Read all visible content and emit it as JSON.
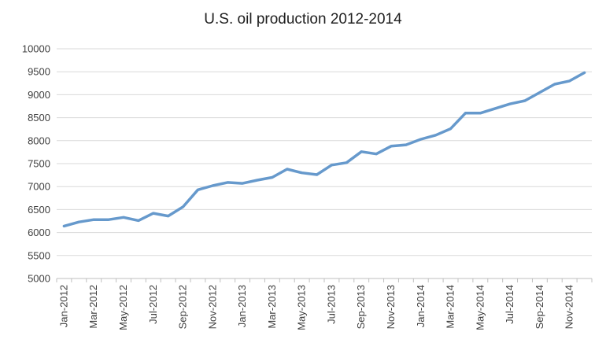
{
  "chart_data": {
    "type": "line",
    "title": "U.S. oil production 2012-2014",
    "xlabel": "",
    "ylabel": "",
    "ylim": [
      5000,
      10000
    ],
    "yticks": [
      5000,
      5500,
      6000,
      6500,
      7000,
      7500,
      8000,
      8500,
      9000,
      9500,
      10000
    ],
    "grid": true,
    "legend": "none",
    "line_color": "#6699CC",
    "x": [
      "Jan-2012",
      "Feb-2012",
      "Mar-2012",
      "Apr-2012",
      "May-2012",
      "Jun-2012",
      "Jul-2012",
      "Aug-2012",
      "Sep-2012",
      "Oct-2012",
      "Nov-2012",
      "Dec-2012",
      "Jan-2013",
      "Feb-2013",
      "Mar-2013",
      "Apr-2013",
      "May-2013",
      "Jun-2013",
      "Jul-2013",
      "Aug-2013",
      "Sep-2013",
      "Oct-2013",
      "Nov-2013",
      "Dec-2013",
      "Jan-2014",
      "Feb-2014",
      "Mar-2014",
      "Apr-2014",
      "May-2014",
      "Jun-2014",
      "Jul-2014",
      "Aug-2014",
      "Sep-2014",
      "Oct-2014",
      "Nov-2014",
      "Dec-2014"
    ],
    "xtick_labels": [
      "Jan-2012",
      "Mar-2012",
      "May-2012",
      "Jul-2012",
      "Sep-2012",
      "Nov-2012",
      "Jan-2013",
      "Mar-2013",
      "May-2013",
      "Jul-2013",
      "Sep-2013",
      "Nov-2013",
      "Jan-2014",
      "Mar-2014",
      "May-2014",
      "Jul-2014",
      "Sep-2014",
      "Nov-2014"
    ],
    "series": [
      {
        "values": [
          6140,
          6230,
          6280,
          6280,
          6330,
          6260,
          6420,
          6360,
          6560,
          6930,
          7020,
          7090,
          7070,
          7140,
          7200,
          7380,
          7300,
          7260,
          7470,
          7520,
          7760,
          7710,
          7880,
          7910,
          8030,
          8120,
          8260,
          8600,
          8600,
          8700,
          8800,
          8870,
          9050,
          9230,
          9300,
          9480
        ]
      }
    ]
  }
}
